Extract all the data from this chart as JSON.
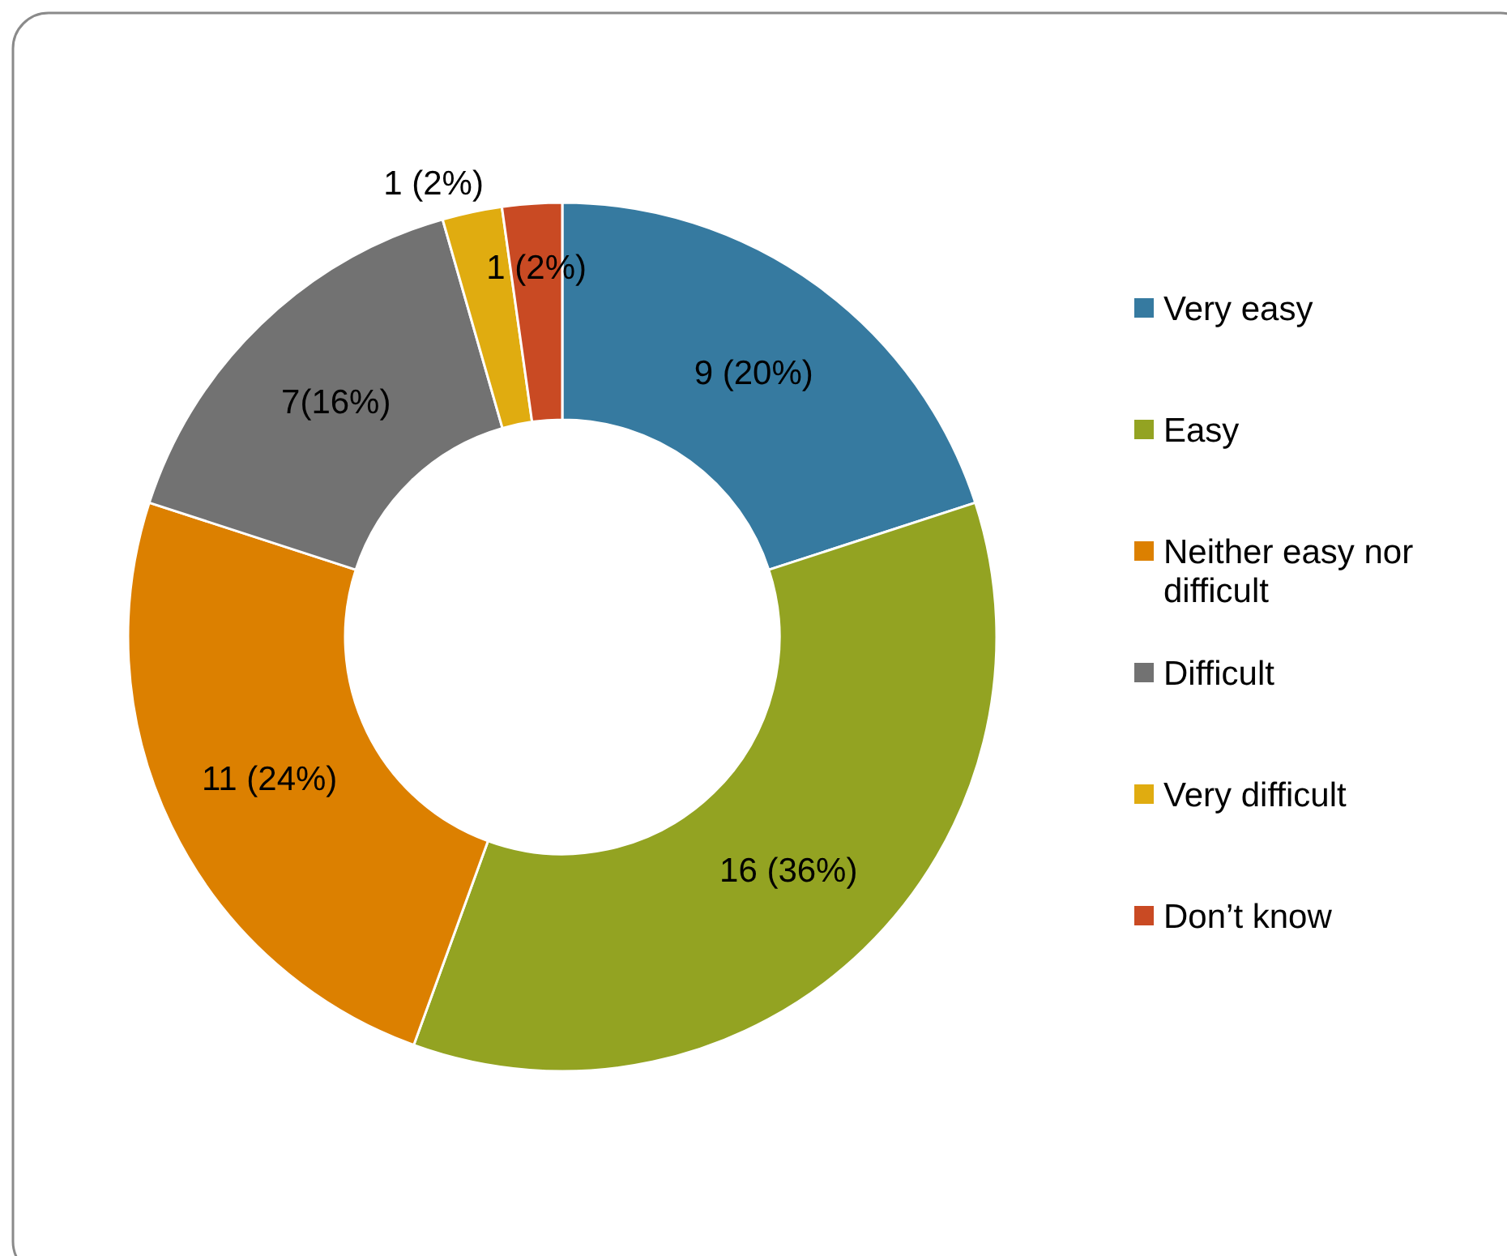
{
  "chart_data": {
    "type": "donut",
    "categories": [
      "Very easy",
      "Easy",
      "Neither easy nor difficult",
      "Difficult",
      "Very difficult",
      "Don’t know"
    ],
    "values": [
      9,
      16,
      11,
      7,
      1,
      1
    ],
    "colors": [
      "#367aa0",
      "#93a322",
      "#dc8000",
      "#727272",
      "#e0ac10",
      "#c94a23"
    ],
    "value_labels": [
      "9 (20%)",
      "16 (36%)",
      "11 (24%)",
      "7(16%)",
      "1 (2%)",
      "1 (2%)"
    ],
    "legend": "right"
  }
}
